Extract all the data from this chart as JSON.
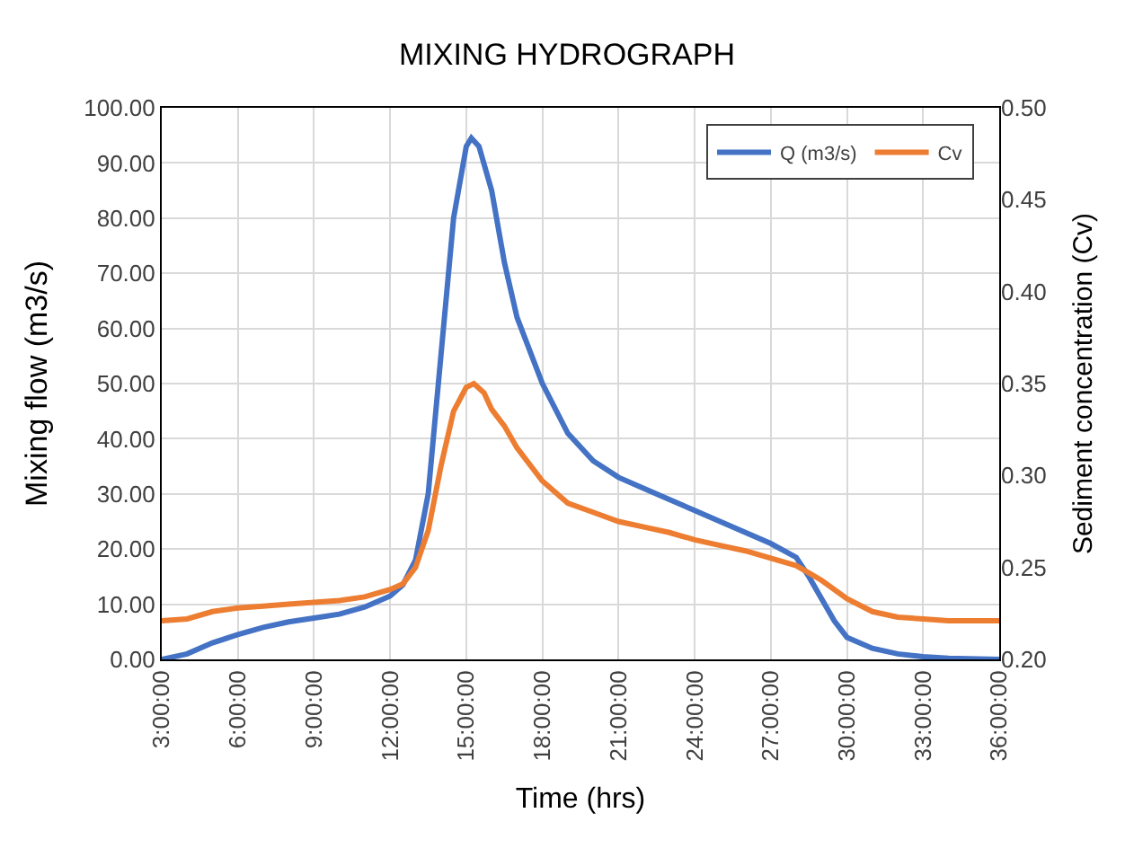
{
  "chart_data": {
    "type": "line",
    "title": "MIXING HYDROGRAPH",
    "xlabel": "Time (hrs)",
    "ylabel": "Mixing flow (m3/s)",
    "y2label": "Sediment concentration (Cv)",
    "xlim": [
      3,
      36
    ],
    "xticks": [
      {
        "value": 3,
        "label": "3:00:00"
      },
      {
        "value": 6,
        "label": "6:00:00"
      },
      {
        "value": 9,
        "label": "9:00:00"
      },
      {
        "value": 12,
        "label": "12:00:00"
      },
      {
        "value": 15,
        "label": "15:00:00"
      },
      {
        "value": 18,
        "label": "18:00:00"
      },
      {
        "value": 21,
        "label": "21:00:00"
      },
      {
        "value": 24,
        "label": "24:00:00"
      },
      {
        "value": 27,
        "label": "27:00:00"
      },
      {
        "value": 30,
        "label": "30:00:00"
      },
      {
        "value": 33,
        "label": "33:00:00"
      },
      {
        "value": 36,
        "label": "36:00:00"
      }
    ],
    "ylim": [
      0,
      100
    ],
    "yticks": [
      {
        "value": 0,
        "label": "0.00"
      },
      {
        "value": 10,
        "label": "10.00"
      },
      {
        "value": 20,
        "label": "20.00"
      },
      {
        "value": 30,
        "label": "30.00"
      },
      {
        "value": 40,
        "label": "40.00"
      },
      {
        "value": 50,
        "label": "50.00"
      },
      {
        "value": 60,
        "label": "60.00"
      },
      {
        "value": 70,
        "label": "70.00"
      },
      {
        "value": 80,
        "label": "80.00"
      },
      {
        "value": 90,
        "label": "90.00"
      },
      {
        "value": 100,
        "label": "100.00"
      }
    ],
    "y2lim": [
      0.2,
      0.5
    ],
    "y2ticks": [
      {
        "value": 0.2,
        "label": "0.20"
      },
      {
        "value": 0.25,
        "label": "0.25"
      },
      {
        "value": 0.3,
        "label": "0.30"
      },
      {
        "value": 0.35,
        "label": "0.35"
      },
      {
        "value": 0.4,
        "label": "0.40"
      },
      {
        "value": 0.45,
        "label": "0.45"
      },
      {
        "value": 0.5,
        "label": "0.50"
      }
    ],
    "grid": true,
    "legend": "top right",
    "marker": "none",
    "line_style": "solid",
    "series": [
      {
        "name": "Q (m3/s)",
        "color": "#4472c4",
        "x": [
          3,
          4,
          5,
          6,
          7,
          8,
          9,
          10,
          11,
          12,
          12.5,
          13,
          13.5,
          14,
          14.5,
          15,
          15.2,
          15.5,
          16,
          16.5,
          17,
          18,
          19,
          20,
          21,
          22,
          23,
          24,
          25,
          26,
          27,
          28,
          28.5,
          29,
          29.5,
          30,
          31,
          32,
          33,
          34,
          36
        ],
        "values": [
          0,
          1,
          3,
          4.5,
          5.8,
          6.8,
          7.5,
          8.2,
          9.5,
          11.5,
          13.5,
          18,
          30,
          55,
          80,
          93,
          94.5,
          93,
          85,
          72,
          62,
          50,
          41,
          36,
          33,
          31,
          29,
          27,
          25,
          23,
          21,
          18.5,
          15,
          11,
          7,
          4,
          2,
          1,
          0.5,
          0.2,
          0
        ]
      },
      {
        "name": "Cv",
        "color": "#ed7d31",
        "axis": "y2",
        "x": [
          3,
          4,
          5,
          6,
          7,
          8,
          9,
          10,
          11,
          12,
          12.5,
          13,
          13.5,
          14,
          14.5,
          15,
          15.3,
          15.7,
          16,
          16.5,
          17,
          18,
          19,
          20,
          21,
          22,
          23,
          24,
          25,
          26,
          27,
          28,
          29,
          30,
          31,
          32,
          33,
          34,
          36
        ],
        "values": [
          0.221,
          0.222,
          0.226,
          0.228,
          0.229,
          0.23,
          0.231,
          0.232,
          0.234,
          0.238,
          0.241,
          0.25,
          0.27,
          0.305,
          0.335,
          0.348,
          0.35,
          0.345,
          0.336,
          0.327,
          0.315,
          0.297,
          0.285,
          0.28,
          0.275,
          0.272,
          0.269,
          0.265,
          0.262,
          0.259,
          0.255,
          0.251,
          0.243,
          0.233,
          0.226,
          0.223,
          0.222,
          0.221,
          0.221
        ]
      }
    ]
  }
}
